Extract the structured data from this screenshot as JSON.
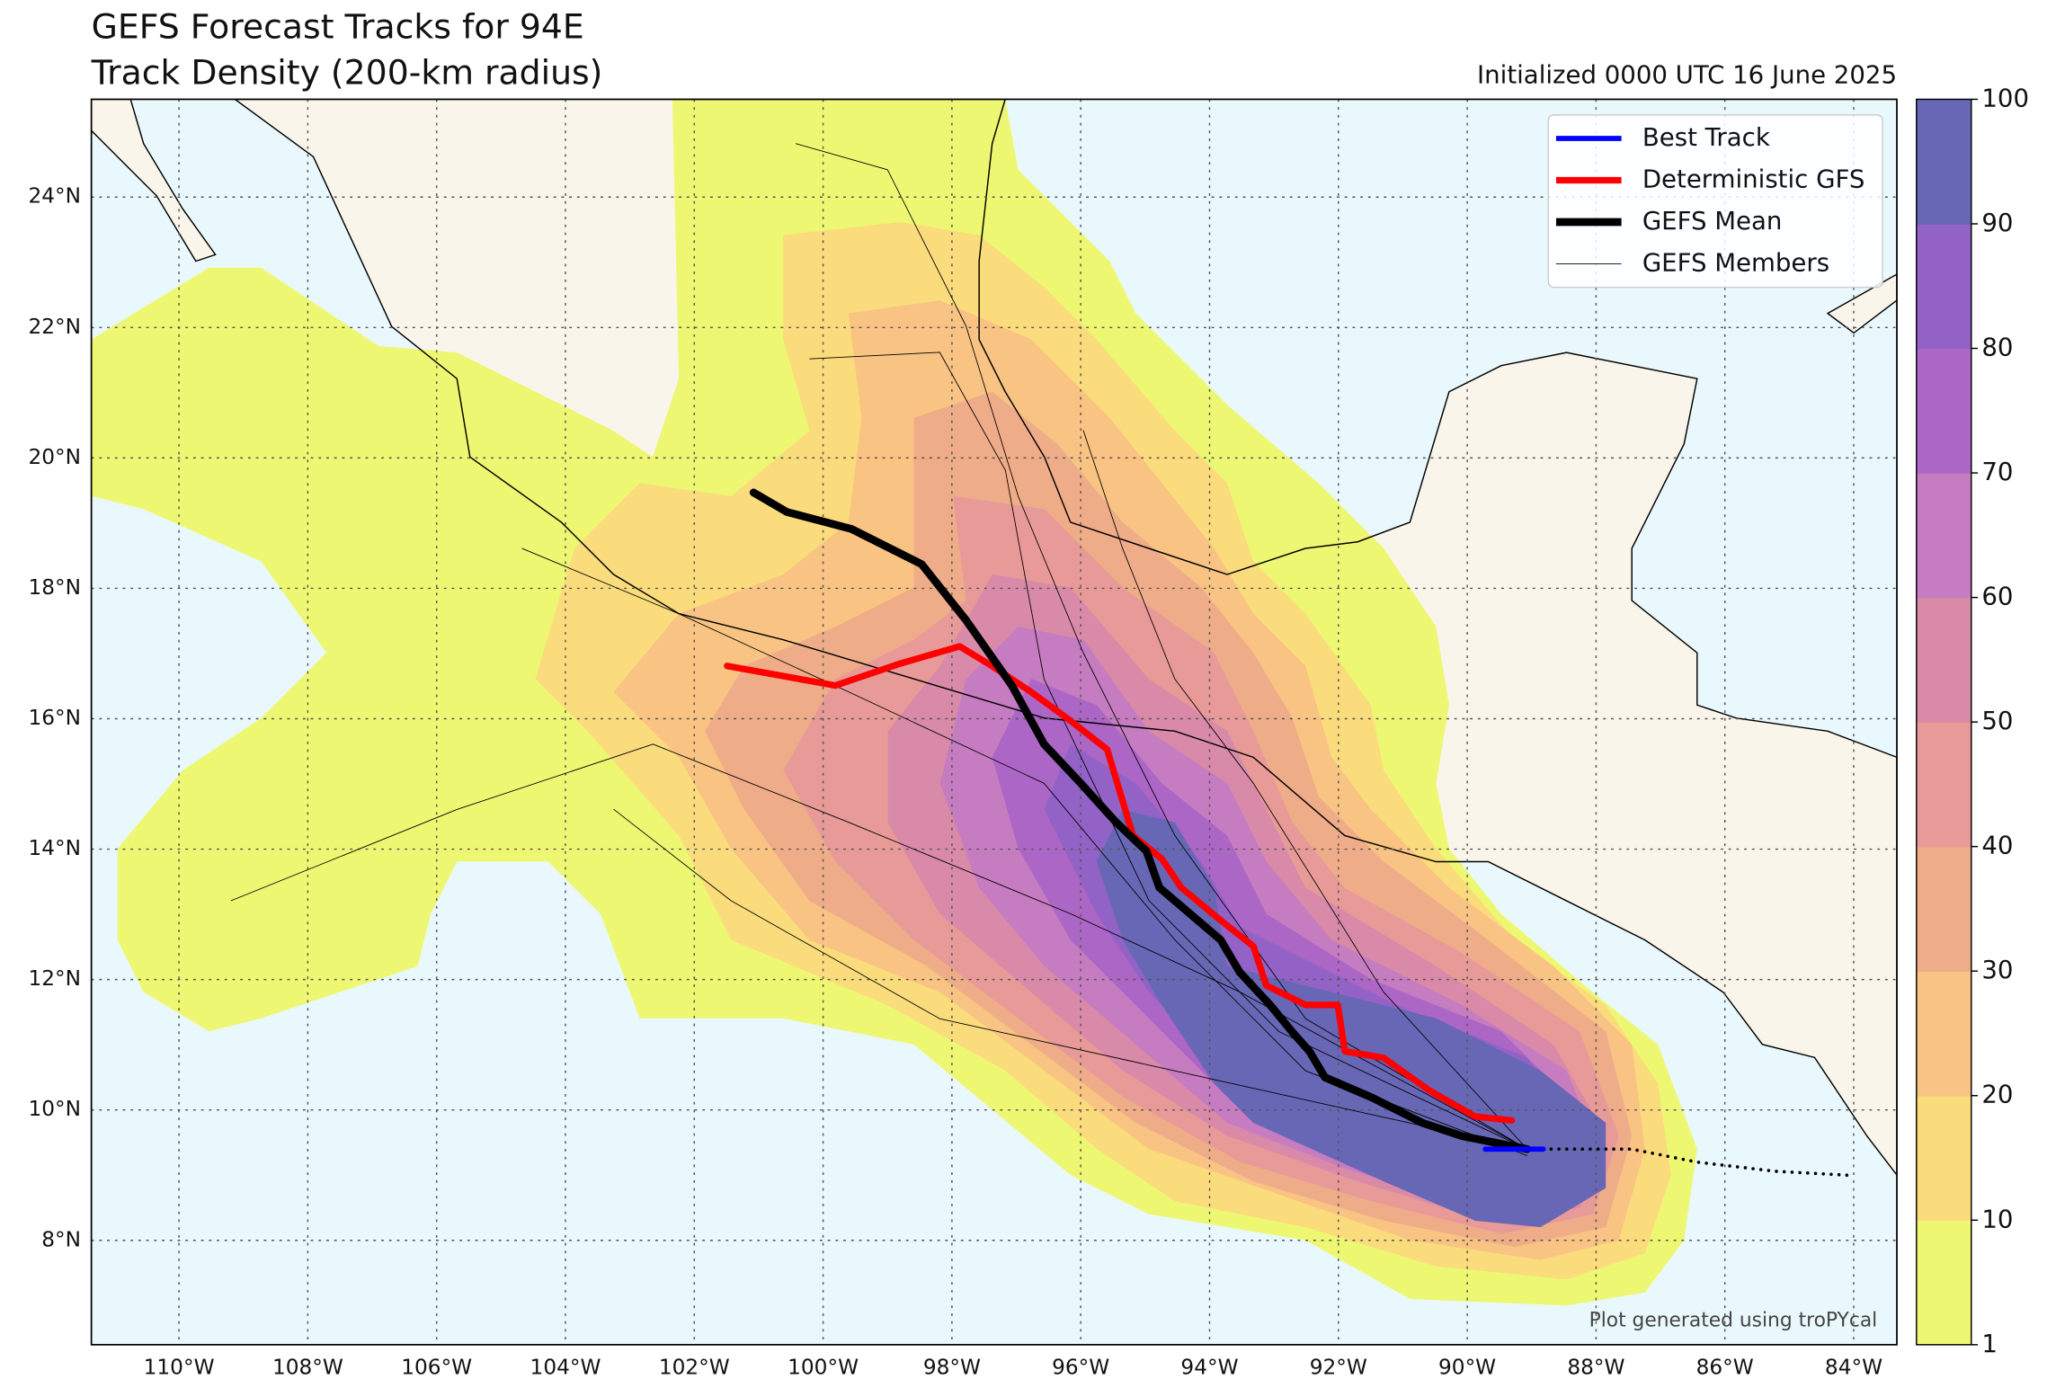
{
  "title_lines": [
    "GEFS Forecast Tracks for 94E",
    "Track Density (200-km radius)"
  ],
  "initialized": "Initialized 0000 UTC 16 June 2025",
  "credit": "Plot generated using troPYcal",
  "map": {
    "xlim": [
      -111.36,
      -83.33
    ],
    "ylim": [
      6.4,
      25.5
    ],
    "grid": true,
    "xticks": [
      {
        "value": -110,
        "label": "110°W"
      },
      {
        "value": -108,
        "label": "108°W"
      },
      {
        "value": -106,
        "label": "106°W"
      },
      {
        "value": -104,
        "label": "104°W"
      },
      {
        "value": -102,
        "label": "102°W"
      },
      {
        "value": -100,
        "label": "100°W"
      },
      {
        "value": -98,
        "label": "98°W"
      },
      {
        "value": -96,
        "label": "96°W"
      },
      {
        "value": -94,
        "label": "94°W"
      },
      {
        "value": -92,
        "label": "92°W"
      },
      {
        "value": -90,
        "label": "90°W"
      },
      {
        "value": -88,
        "label": "88°W"
      },
      {
        "value": -86,
        "label": "86°W"
      },
      {
        "value": -84,
        "label": "84°W"
      }
    ],
    "yticks": [
      {
        "value": 8,
        "label": "8°N"
      },
      {
        "value": 10,
        "label": "10°N"
      },
      {
        "value": 12,
        "label": "12°N"
      },
      {
        "value": 14,
        "label": "14°N"
      },
      {
        "value": 16,
        "label": "16°N"
      },
      {
        "value": 18,
        "label": "18°N"
      },
      {
        "value": 20,
        "label": "20°N"
      },
      {
        "value": 22,
        "label": "22°N"
      },
      {
        "value": 24,
        "label": "24°N"
      }
    ]
  },
  "colorbar": {
    "ticks": [
      1,
      10,
      20,
      30,
      40,
      50,
      60,
      70,
      80,
      90,
      100
    ],
    "colors": [
      "#eef772",
      "#fbdc7c",
      "#f8c383",
      "#efac88",
      "#e79a98",
      "#d98aa8",
      "#c67cc0",
      "#ac66c6",
      "#9262c6",
      "#6767b6"
    ]
  },
  "tracks": [
    {
      "name": "Best Track",
      "color": "#0000ff",
      "lon": [
        -89.72,
        -88.82
      ],
      "lat": [
        9.4,
        9.4
      ]
    },
    {
      "name": "Deterministic GFS",
      "color": "#ff0000",
      "lon": [
        -101.49,
        -99.81,
        -98.79,
        -97.88,
        -97.38,
        -96.77,
        -96.16,
        -95.59,
        -95.19,
        -94.74,
        -94.44,
        -93.83,
        -93.32,
        -93.12,
        -92.51,
        -92.01,
        -91.9,
        -91.3,
        -90.59,
        -89.88,
        -89.31
      ],
      "lat": [
        16.81,
        16.51,
        16.85,
        17.11,
        16.81,
        16.41,
        15.97,
        15.53,
        14.21,
        13.85,
        13.41,
        12.91,
        12.51,
        11.91,
        11.61,
        11.61,
        10.9,
        10.8,
        10.3,
        9.9,
        9.84
      ]
    },
    {
      "name": "GEFS Mean",
      "color": "#000000",
      "lon": [
        -101.08,
        -100.56,
        -99.56,
        -98.47,
        -97.78,
        -97.07,
        -96.57,
        -96.0,
        -95.45,
        -94.98,
        -94.78,
        -93.83,
        -93.53,
        -93.06,
        -92.72,
        -92.45,
        -92.21,
        -91.5,
        -90.69,
        -90.08,
        -89.07
      ],
      "lat": [
        19.47,
        19.17,
        18.91,
        18.37,
        17.51,
        16.51,
        15.61,
        15.01,
        14.41,
        13.97,
        13.41,
        12.61,
        12.11,
        11.61,
        11.2,
        10.9,
        10.5,
        10.2,
        9.8,
        9.6,
        9.4
      ]
    },
    {
      "name": "GEFS Members",
      "color": "#000000",
      "members": [
        {
          "lon": [
            -89.07,
            -92.51,
            -94.54,
            -96.57,
            -99.6,
            -102.24,
            -104.67
          ],
          "lat": [
            9.3,
            10.6,
            12.61,
            15.01,
            16.41,
            17.61,
            18.61
          ]
        },
        {
          "lon": [
            -89.07,
            -93.53,
            -96.16,
            -99.6,
            -102.64,
            -105.68,
            -109.19
          ],
          "lat": [
            9.4,
            11.81,
            13.01,
            14.41,
            15.61,
            14.61,
            13.21
          ]
        },
        {
          "lon": [
            -89.07,
            -92.51,
            -94.54,
            -95.96,
            -96.97,
            -97.78,
            -99.0,
            -100.42
          ],
          "lat": [
            9.4,
            11.4,
            14.21,
            17.01,
            19.41,
            22.02,
            24.42,
            24.82
          ]
        },
        {
          "lon": [
            -89.07,
            -92.92,
            -94.94,
            -96.57,
            -97.17,
            -98.19,
            -100.21
          ],
          "lat": [
            9.4,
            11.2,
            13.21,
            16.61,
            19.81,
            21.62,
            21.52
          ]
        },
        {
          "lon": [
            -89.07,
            -94.54,
            -98.19,
            -101.43,
            -103.25
          ],
          "lat": [
            9.4,
            10.6,
            11.4,
            13.21,
            14.61
          ]
        },
        {
          "lon": [
            -89.07,
            -91.3,
            -93.32,
            -94.54,
            -95.35,
            -95.96
          ],
          "lat": [
            9.4,
            11.81,
            15.01,
            16.61,
            18.61,
            20.42
          ]
        }
      ]
    }
  ],
  "extension": {
    "lon": [
      -88.82,
      -87.45,
      -86.43,
      -85.22,
      -84.1
    ],
    "lat": [
      9.4,
      9.4,
      9.2,
      9.06,
      9.0
    ]
  }
}
